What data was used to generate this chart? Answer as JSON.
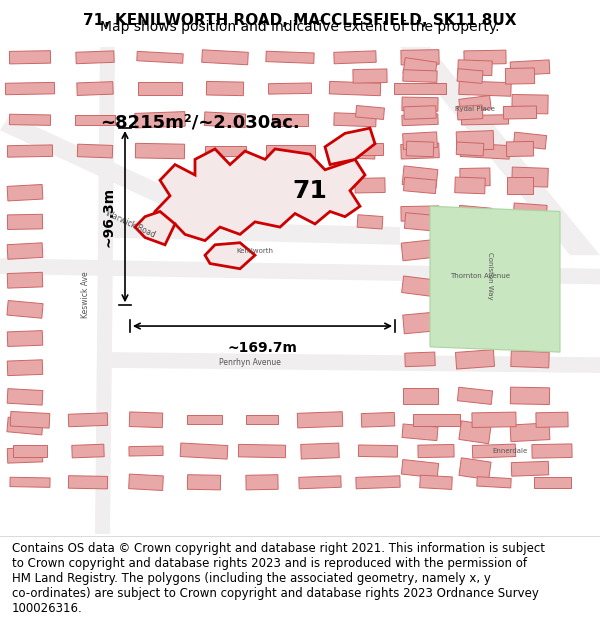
{
  "title_line1": "71, KENILWORTH ROAD, MACCLESFIELD, SK11 8UX",
  "title_line2": "Map shows position and indicative extent of the property.",
  "area_label": "~8215m²/~2.030ac.",
  "dim_horiz": "~169.7m",
  "dim_vert": "~96.3m",
  "number_label": "71",
  "footer_wrapped": "Contains OS data © Crown copyright and database right 2021. This information is subject\nto Crown copyright and database rights 2023 and is reproduced with the permission of\nHM Land Registry. The polygons (including the associated geometry, namely x, y\nco-ordinates) are subject to Crown copyright and database rights 2023 Ordnance Survey\n100026316.",
  "map_bg": "#f5f0ef",
  "building_color": "#e8a8a8",
  "building_edge": "#cc6666",
  "highlight_edge": "#cc0000",
  "highlight_fill": "#f5e8e8",
  "green_fill": "#c8e6c0",
  "green_edge": "#aad4a0",
  "title_fontsize": 11,
  "subtitle_fontsize": 10,
  "footer_fontsize": 8.5,
  "annotation_fontsize": 13,
  "number_fontsize": 18
}
